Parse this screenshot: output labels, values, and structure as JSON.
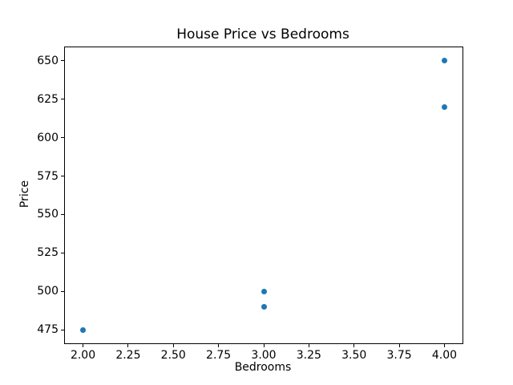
{
  "chart_data": {
    "type": "scatter",
    "title": "House Price vs Bedrooms",
    "xlabel": "Bedrooms",
    "ylabel": "Price",
    "points": [
      {
        "x": 2,
        "y": 475
      },
      {
        "x": 3,
        "y": 490
      },
      {
        "x": 3,
        "y": 500
      },
      {
        "x": 4,
        "y": 620
      },
      {
        "x": 4,
        "y": 650
      }
    ],
    "xlim": [
      1.9,
      4.1
    ],
    "ylim": [
      466.25,
      658.75
    ],
    "xtick_values": [
      2.0,
      2.25,
      2.5,
      2.75,
      3.0,
      3.25,
      3.5,
      3.75,
      4.0
    ],
    "xtick_labels": [
      "2.00",
      "2.25",
      "2.50",
      "2.75",
      "3.00",
      "3.25",
      "3.50",
      "3.75",
      "4.00"
    ],
    "ytick_values": [
      475,
      500,
      525,
      550,
      575,
      600,
      625,
      650
    ],
    "ytick_labels": [
      "475",
      "500",
      "525",
      "550",
      "575",
      "600",
      "625",
      "650"
    ],
    "grid": false,
    "legend": null,
    "marker_color": "#1f77b4",
    "spine_color": "#000000"
  }
}
